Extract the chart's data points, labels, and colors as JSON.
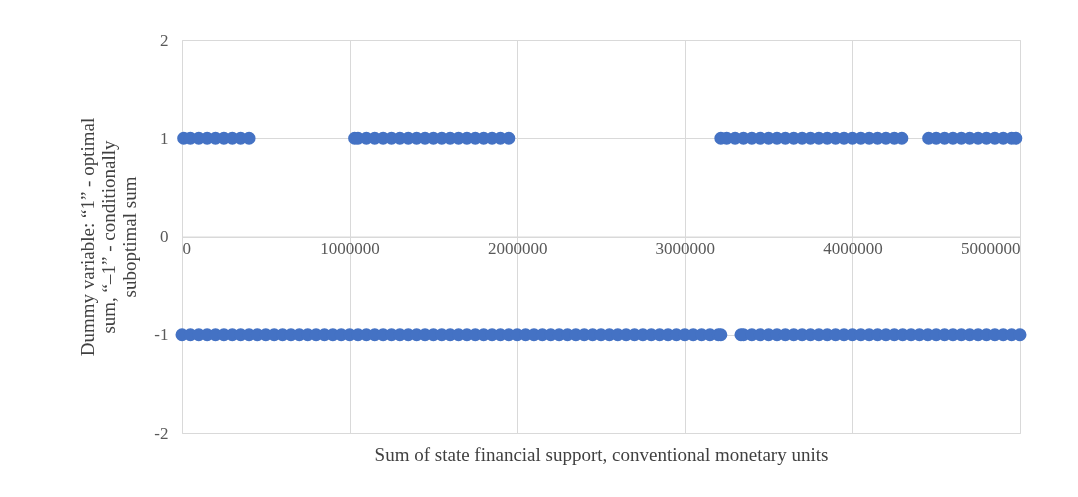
{
  "chart_data": {
    "type": "scatter",
    "xlabel": "Sum of state financial support, conventional monetary units",
    "ylabel": "Dummy variable: “1” - optimal sum, “–1” - conditionally suboptimal sum",
    "xlim": [
      0,
      5000000
    ],
    "xticks": [
      0,
      1000000,
      2000000,
      3000000,
      4000000,
      5000000
    ],
    "ylim": [
      -2,
      2
    ],
    "yticks": [
      -2,
      -1,
      0,
      1,
      2
    ],
    "grid": true,
    "marker": "circle",
    "legend": false,
    "series": [
      {
        "color": "#4472c4",
        "x": [
          10000,
          50000,
          100000,
          150000,
          200000,
          250000,
          300000,
          350000,
          400000,
          1030000,
          1050000,
          1100000,
          1150000,
          1200000,
          1250000,
          1300000,
          1350000,
          1400000,
          1450000,
          1500000,
          1550000,
          1600000,
          1650000,
          1700000,
          1750000,
          1800000,
          1850000,
          1900000,
          1950000,
          3215000,
          3250000,
          3300000,
          3350000,
          3400000,
          3450000,
          3500000,
          3550000,
          3600000,
          3650000,
          3700000,
          3750000,
          3800000,
          3850000,
          3900000,
          3950000,
          4000000,
          4050000,
          4100000,
          4150000,
          4200000,
          4250000,
          4295000,
          4455000,
          4500000,
          4550000,
          4600000,
          4650000,
          4700000,
          4750000,
          4800000,
          4850000,
          4900000,
          4950000,
          4975000
        ],
        "values": [
          1,
          1,
          1,
          1,
          1,
          1,
          1,
          1,
          1,
          1,
          1,
          1,
          1,
          1,
          1,
          1,
          1,
          1,
          1,
          1,
          1,
          1,
          1,
          1,
          1,
          1,
          1,
          1,
          1,
          1,
          1,
          1,
          1,
          1,
          1,
          1,
          1,
          1,
          1,
          1,
          1,
          1,
          1,
          1,
          1,
          1,
          1,
          1,
          1,
          1,
          1,
          1,
          1,
          1,
          1,
          1,
          1,
          1,
          1,
          1,
          1,
          1,
          1,
          1
        ]
      },
      {
        "color": "#4472c4",
        "x": [
          0,
          50000,
          100000,
          150000,
          200000,
          250000,
          300000,
          350000,
          400000,
          450000,
          500000,
          550000,
          600000,
          650000,
          700000,
          750000,
          800000,
          850000,
          900000,
          950000,
          1000000,
          1050000,
          1100000,
          1150000,
          1200000,
          1250000,
          1300000,
          1350000,
          1400000,
          1450000,
          1500000,
          1550000,
          1600000,
          1650000,
          1700000,
          1750000,
          1800000,
          1850000,
          1900000,
          1950000,
          2000000,
          2050000,
          2100000,
          2150000,
          2200000,
          2250000,
          2300000,
          2350000,
          2400000,
          2450000,
          2500000,
          2550000,
          2600000,
          2650000,
          2700000,
          2750000,
          2800000,
          2850000,
          2900000,
          2950000,
          3000000,
          3050000,
          3100000,
          3150000,
          3200000,
          3215000,
          3335000,
          3350000,
          3400000,
          3450000,
          3500000,
          3550000,
          3600000,
          3650000,
          3700000,
          3750000,
          3800000,
          3850000,
          3900000,
          3950000,
          4000000,
          4050000,
          4100000,
          4150000,
          4200000,
          4250000,
          4300000,
          4350000,
          4400000,
          4450000,
          4500000,
          4550000,
          4600000,
          4650000,
          4700000,
          4750000,
          4800000,
          4850000,
          4900000,
          4950000,
          5000000
        ],
        "values": [
          -1,
          -1,
          -1,
          -1,
          -1,
          -1,
          -1,
          -1,
          -1,
          -1,
          -1,
          -1,
          -1,
          -1,
          -1,
          -1,
          -1,
          -1,
          -1,
          -1,
          -1,
          -1,
          -1,
          -1,
          -1,
          -1,
          -1,
          -1,
          -1,
          -1,
          -1,
          -1,
          -1,
          -1,
          -1,
          -1,
          -1,
          -1,
          -1,
          -1,
          -1,
          -1,
          -1,
          -1,
          -1,
          -1,
          -1,
          -1,
          -1,
          -1,
          -1,
          -1,
          -1,
          -1,
          -1,
          -1,
          -1,
          -1,
          -1,
          -1,
          -1,
          -1,
          -1,
          -1,
          -1,
          -1,
          -1,
          -1,
          -1,
          -1,
          -1,
          -1,
          -1,
          -1,
          -1,
          -1,
          -1,
          -1,
          -1,
          -1,
          -1,
          -1,
          -1,
          -1,
          -1,
          -1,
          -1,
          -1,
          -1,
          -1,
          -1,
          -1,
          -1,
          -1,
          -1,
          -1,
          -1,
          -1,
          -1,
          -1,
          -1
        ]
      }
    ]
  }
}
